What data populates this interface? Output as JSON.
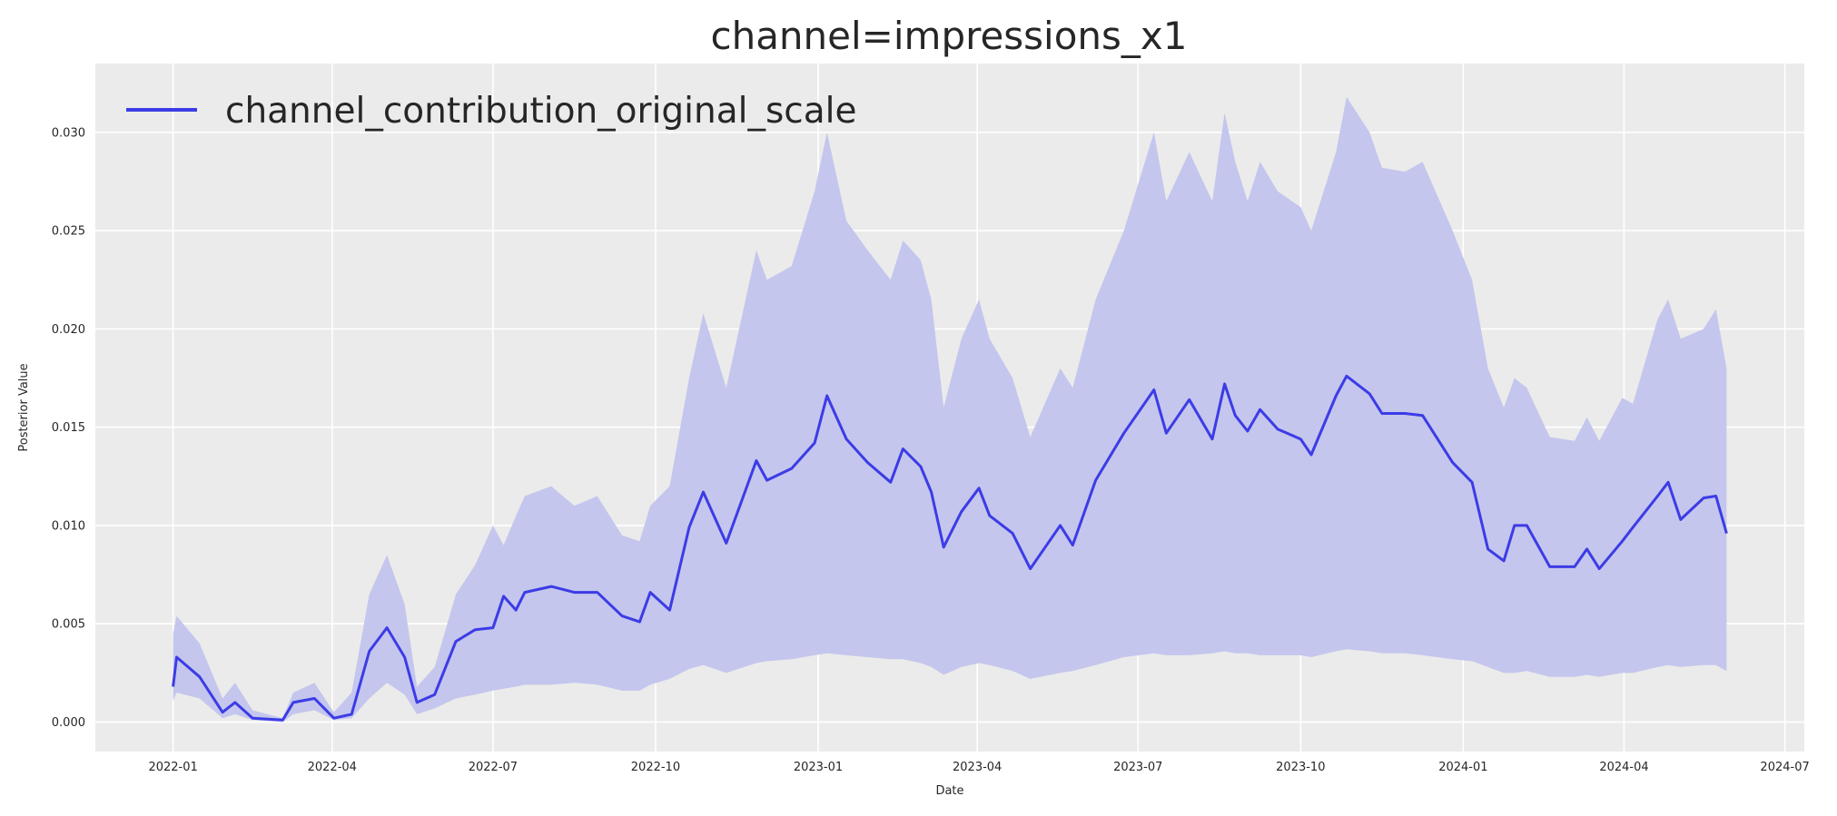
{
  "chart_data": {
    "type": "line",
    "title": "channel=impressions_x1",
    "xlabel": "Date",
    "ylabel": "Posterior Value",
    "xlim": [
      "2021-11-18",
      "2024-07-12"
    ],
    "ylim": [
      -0.0015,
      0.0335
    ],
    "grid": true,
    "legend": {
      "placement": "top-left",
      "entries": [
        "channel_contribution_original_scale"
      ]
    },
    "colors": {
      "line": "#3c3ce6",
      "band": "#c4c6ed",
      "background": "#ebebeb",
      "grid": "#ffffff"
    },
    "x_ticks": [
      "2022-01",
      "2022-04",
      "2022-07",
      "2022-10",
      "2023-01",
      "2023-04",
      "2023-07",
      "2023-10",
      "2024-01",
      "2024-04",
      "2024-07"
    ],
    "y_ticks": [
      "0.000",
      "0.005",
      "0.010",
      "0.015",
      "0.020",
      "0.025",
      "0.030"
    ],
    "series": [
      {
        "name": "channel_contribution_original_scale",
        "fields": [
          "date",
          "mean",
          "lower",
          "upper"
        ],
        "points": [
          [
            "2022-01-01",
            0.0018,
            0.0011,
            0.0045
          ],
          [
            "2022-01-03",
            0.0033,
            0.0015,
            0.0054
          ],
          [
            "2022-01-16",
            0.0023,
            0.0012,
            0.004
          ],
          [
            "2022-01-29",
            0.0005,
            0.0002,
            0.0012
          ],
          [
            "2022-02-05",
            0.001,
            0.0004,
            0.002
          ],
          [
            "2022-02-15",
            0.0002,
            0.0001,
            0.0006
          ],
          [
            "2022-03-04",
            0.0001,
            0.0,
            0.0002
          ],
          [
            "2022-03-10",
            0.001,
            0.0004,
            0.0015
          ],
          [
            "2022-03-22",
            0.0012,
            0.0006,
            0.002
          ],
          [
            "2022-04-02",
            0.0002,
            0.0001,
            0.0005
          ],
          [
            "2022-04-12",
            0.0004,
            0.0002,
            0.0015
          ],
          [
            "2022-04-22",
            0.0036,
            0.0012,
            0.0065
          ],
          [
            "2022-05-02",
            0.0048,
            0.002,
            0.0085
          ],
          [
            "2022-05-12",
            0.0033,
            0.0014,
            0.006
          ],
          [
            "2022-05-19",
            0.001,
            0.0004,
            0.0018
          ],
          [
            "2022-05-29",
            0.0014,
            0.0007,
            0.0028
          ],
          [
            "2022-06-10",
            0.0041,
            0.0012,
            0.0065
          ],
          [
            "2022-06-21",
            0.0047,
            0.0014,
            0.008
          ],
          [
            "2022-07-01",
            0.0048,
            0.0016,
            0.01
          ],
          [
            "2022-07-07",
            0.0064,
            0.0017,
            0.009
          ],
          [
            "2022-07-14",
            0.0057,
            0.0018,
            0.0105
          ],
          [
            "2022-07-19",
            0.0066,
            0.0019,
            0.0115
          ],
          [
            "2022-08-03",
            0.0069,
            0.0019,
            0.012
          ],
          [
            "2022-08-16",
            0.0066,
            0.002,
            0.011
          ],
          [
            "2022-08-29",
            0.0066,
            0.0019,
            0.0115
          ],
          [
            "2022-09-12",
            0.0054,
            0.0016,
            0.0095
          ],
          [
            "2022-09-22",
            0.0051,
            0.0016,
            0.0092
          ],
          [
            "2022-09-28",
            0.0066,
            0.0019,
            0.011
          ],
          [
            "2022-10-09",
            0.0057,
            0.0022,
            0.012
          ],
          [
            "2022-10-20",
            0.0099,
            0.0027,
            0.0175
          ],
          [
            "2022-10-28",
            0.0117,
            0.0029,
            0.0208
          ],
          [
            "2022-11-10",
            0.0091,
            0.0025,
            0.017
          ],
          [
            "2022-11-27",
            0.0133,
            0.003,
            0.024
          ],
          [
            "2022-12-03",
            0.0123,
            0.0031,
            0.0225
          ],
          [
            "2022-12-17",
            0.0129,
            0.0032,
            0.0232
          ],
          [
            "2022-12-30",
            0.0142,
            0.0034,
            0.027
          ],
          [
            "2023-01-06",
            0.0166,
            0.0035,
            0.03
          ],
          [
            "2023-01-17",
            0.0144,
            0.0034,
            0.0255
          ],
          [
            "2023-01-29",
            0.0132,
            0.0033,
            0.024
          ],
          [
            "2023-02-11",
            0.0122,
            0.0032,
            0.0225
          ],
          [
            "2023-02-18",
            0.0139,
            0.0032,
            0.0245
          ],
          [
            "2023-02-28",
            0.013,
            0.003,
            0.0235
          ],
          [
            "2023-03-06",
            0.0117,
            0.0028,
            0.0215
          ],
          [
            "2023-03-13",
            0.0089,
            0.0024,
            0.016
          ],
          [
            "2023-03-23",
            0.0107,
            0.0028,
            0.0195
          ],
          [
            "2023-04-02",
            0.0119,
            0.003,
            0.0215
          ],
          [
            "2023-04-08",
            0.0105,
            0.0029,
            0.0195
          ],
          [
            "2023-04-21",
            0.0096,
            0.0026,
            0.0175
          ],
          [
            "2023-05-01",
            0.0078,
            0.0022,
            0.0145
          ],
          [
            "2023-05-18",
            0.01,
            0.0025,
            0.018
          ],
          [
            "2023-05-25",
            0.009,
            0.0026,
            0.017
          ],
          [
            "2023-06-07",
            0.0123,
            0.0029,
            0.0215
          ],
          [
            "2023-06-23",
            0.0147,
            0.0033,
            0.025
          ],
          [
            "2023-07-10",
            0.0169,
            0.0035,
            0.03
          ],
          [
            "2023-07-17",
            0.0147,
            0.0034,
            0.0265
          ],
          [
            "2023-07-30",
            0.0164,
            0.0034,
            0.029
          ],
          [
            "2023-08-12",
            0.0144,
            0.0035,
            0.0265
          ],
          [
            "2023-08-19",
            0.0172,
            0.0036,
            0.031
          ],
          [
            "2023-08-25",
            0.0156,
            0.0035,
            0.0285
          ],
          [
            "2023-09-01",
            0.0148,
            0.0035,
            0.0265
          ],
          [
            "2023-09-08",
            0.0159,
            0.0034,
            0.0285
          ],
          [
            "2023-09-18",
            0.0149,
            0.0034,
            0.027
          ],
          [
            "2023-10-01",
            0.0144,
            0.0034,
            0.0262
          ],
          [
            "2023-10-07",
            0.0136,
            0.0033,
            0.025
          ],
          [
            "2023-10-21",
            0.0166,
            0.0036,
            0.029
          ],
          [
            "2023-10-27",
            0.0176,
            0.0037,
            0.0318
          ],
          [
            "2023-11-09",
            0.0167,
            0.0036,
            0.03
          ],
          [
            "2023-11-16",
            0.0157,
            0.0035,
            0.0282
          ],
          [
            "2023-11-29",
            0.0157,
            0.0035,
            0.028
          ],
          [
            "2023-12-09",
            0.0156,
            0.0034,
            0.0285
          ],
          [
            "2023-12-26",
            0.0132,
            0.0032,
            0.025
          ],
          [
            "2024-01-06",
            0.0122,
            0.0031,
            0.0225
          ],
          [
            "2024-01-15",
            0.0088,
            0.0028,
            0.018
          ],
          [
            "2024-01-24",
            0.0082,
            0.0025,
            0.016
          ],
          [
            "2024-01-30",
            0.01,
            0.0025,
            0.0175
          ],
          [
            "2024-02-06",
            0.01,
            0.0026,
            0.017
          ],
          [
            "2024-02-19",
            0.0079,
            0.0023,
            0.0145
          ],
          [
            "2024-03-04",
            0.0079,
            0.0023,
            0.0143
          ],
          [
            "2024-03-11",
            0.0088,
            0.0024,
            0.0155
          ],
          [
            "2024-03-18",
            0.0078,
            0.0023,
            0.0143
          ],
          [
            "2024-03-31",
            0.0092,
            0.0025,
            0.0165
          ],
          [
            "2024-04-06",
            0.0099,
            0.0025,
            0.0162
          ],
          [
            "2024-04-20",
            0.0115,
            0.0028,
            0.0205
          ],
          [
            "2024-04-26",
            0.0122,
            0.0029,
            0.0215
          ],
          [
            "2024-05-03",
            0.0103,
            0.0028,
            0.0195
          ],
          [
            "2024-05-16",
            0.0114,
            0.0029,
            0.02
          ],
          [
            "2024-05-23",
            0.0115,
            0.0029,
            0.021
          ],
          [
            "2024-05-29",
            0.0096,
            0.0026,
            0.018
          ]
        ]
      }
    ]
  }
}
